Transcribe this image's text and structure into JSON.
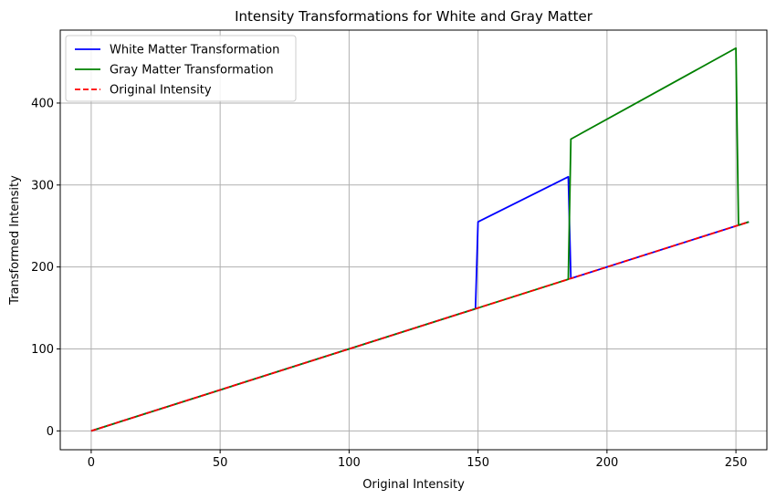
{
  "chart_data": {
    "type": "line",
    "title": "Intensity Transformations for White and Gray Matter",
    "xlabel": "Original Intensity",
    "ylabel": "Transformed Intensity",
    "xlim": [
      -12,
      262
    ],
    "ylim": [
      -23,
      489
    ],
    "xticks": [
      0,
      50,
      100,
      150,
      200,
      250
    ],
    "yticks": [
      0,
      100,
      200,
      300,
      400
    ],
    "grid": true,
    "legend_position": "top-left",
    "series": [
      {
        "name": "White Matter Transformation",
        "color": "#0000ff",
        "dash": "solid",
        "points": [
          [
            0,
            0
          ],
          [
            149,
            149
          ],
          [
            150,
            255
          ],
          [
            185,
            310
          ],
          [
            186,
            186
          ],
          [
            255,
            255
          ]
        ]
      },
      {
        "name": "Gray Matter Transformation",
        "color": "#008000",
        "dash": "solid",
        "points": [
          [
            0,
            0
          ],
          [
            185,
            185
          ],
          [
            186,
            356
          ],
          [
            250,
            467
          ],
          [
            251,
            251
          ],
          [
            255,
            255
          ]
        ]
      },
      {
        "name": "Original Intensity",
        "color": "#ff0000",
        "dash": "dashed",
        "points": [
          [
            0,
            0
          ],
          [
            255,
            255
          ]
        ]
      }
    ]
  }
}
